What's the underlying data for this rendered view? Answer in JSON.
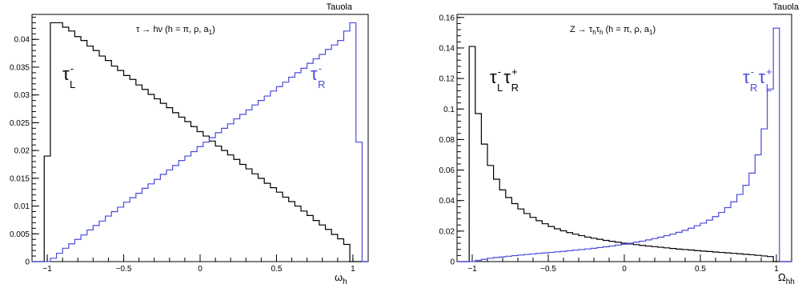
{
  "chart_data": [
    {
      "type": "histogram",
      "corner_label": "Tauola",
      "title_parts": {
        "main": "τ → hν (h = π, ρ, a",
        "sub": "1",
        "close": ")"
      },
      "xlabel": {
        "main": "ω",
        "sub": "h"
      },
      "ylabel": "",
      "xlim": [
        -1.1,
        1.1
      ],
      "ylim": [
        0,
        0.0445
      ],
      "grid": false,
      "xticks": [
        -1,
        -0.5,
        0,
        0.5,
        1
      ],
      "xtick_labels": [
        "−1",
        "−0.5",
        "0",
        "0.5",
        "1"
      ],
      "yticks": [
        0,
        0.005,
        0.01,
        0.015,
        0.02,
        0.025,
        0.03,
        0.035,
        0.04
      ],
      "ytick_labels": [
        "0",
        "0.005",
        "0.01",
        "0.015",
        "0.02",
        "0.025",
        "0.03",
        "0.035",
        "0.04"
      ],
      "bins": {
        "start": -1.1,
        "width": 0.04,
        "count": 55
      },
      "series": [
        {
          "name": "τL−",
          "label_parts": {
            "main": "τ",
            "sup": "-",
            "sub": "L"
          },
          "color": "#000000",
          "values": [
            0,
            0,
            0.019,
            0.043,
            0.043,
            0.0422,
            0.0415,
            0.0405,
            0.0398,
            0.0388,
            0.038,
            0.037,
            0.0362,
            0.0352,
            0.0344,
            0.0335,
            0.0328,
            0.0318,
            0.031,
            0.0301,
            0.0293,
            0.0285,
            0.0277,
            0.0268,
            0.026,
            0.0252,
            0.0243,
            0.0234,
            0.0226,
            0.0217,
            0.0208,
            0.02,
            0.0192,
            0.0184,
            0.0175,
            0.0167,
            0.0158,
            0.015,
            0.0141,
            0.0133,
            0.0125,
            0.0116,
            0.0108,
            0.01,
            0.0091,
            0.0083,
            0.0074,
            0.0066,
            0.0058,
            0.0049,
            0.0041,
            0.0031,
            0,
            0,
            0
          ]
        },
        {
          "name": "τR−",
          "label_parts": {
            "main": "τ",
            "sup": "-",
            "sub": "R"
          },
          "color": "#4a4add",
          "values": [
            0,
            0,
            0,
            0.0006,
            0.0015,
            0.0024,
            0.0032,
            0.004,
            0.0048,
            0.0057,
            0.0065,
            0.0073,
            0.0082,
            0.009,
            0.0098,
            0.0107,
            0.0115,
            0.0123,
            0.0132,
            0.014,
            0.0148,
            0.0157,
            0.0165,
            0.0173,
            0.0182,
            0.019,
            0.0198,
            0.0207,
            0.0215,
            0.0223,
            0.0232,
            0.024,
            0.0248,
            0.0257,
            0.0265,
            0.0273,
            0.0282,
            0.029,
            0.0298,
            0.0307,
            0.0315,
            0.0323,
            0.0332,
            0.034,
            0.0348,
            0.0357,
            0.0365,
            0.0373,
            0.0382,
            0.039,
            0.0398,
            0.0415,
            0.043,
            0.0215,
            0
          ]
        }
      ]
    },
    {
      "type": "histogram",
      "corner_label": "Tauola",
      "title_parts": {
        "main1": "Z → τ",
        "sub1": "h",
        "main2": "τ",
        "sub2": "h",
        "main3": " (h = π, ρ, a",
        "sub3": "1",
        "close": ")"
      },
      "xlabel": {
        "main": "Ω",
        "sub": "hh"
      },
      "ylabel": "",
      "xlim": [
        -1.1,
        1.1
      ],
      "ylim": [
        0,
        0.162
      ],
      "grid": false,
      "xticks": [
        -1,
        -0.5,
        0,
        0.5,
        1
      ],
      "xtick_labels": [
        "−1",
        "−0.5",
        "0",
        "0.5",
        "1"
      ],
      "yticks": [
        0,
        0.02,
        0.04,
        0.06,
        0.08,
        0.1,
        0.12,
        0.14,
        0.16
      ],
      "ytick_labels": [
        "0",
        "0.02",
        "0.04",
        "0.06",
        "0.08",
        "0.1",
        "0.12",
        "0.14",
        "0.16"
      ],
      "bins": {
        "start": -1.1,
        "width": 0.04,
        "count": 55
      },
      "series": [
        {
          "name": "τL−τR+",
          "label_parts": {
            "main1": "τ",
            "sup1": "-",
            "sub1": "L",
            "main2": "τ",
            "sup2": "+",
            "sub2": "R"
          },
          "color": "#000000",
          "values": [
            0,
            0,
            0.141,
            0.097,
            0.077,
            0.063,
            0.054,
            0.047,
            0.042,
            0.038,
            0.0345,
            0.0315,
            0.029,
            0.0268,
            0.0248,
            0.023,
            0.0215,
            0.0202,
            0.019,
            0.018,
            0.017,
            0.0161,
            0.0153,
            0.0146,
            0.0139,
            0.0133,
            0.0127,
            0.0121,
            0.0116,
            0.0111,
            0.0106,
            0.0102,
            0.0098,
            0.0094,
            0.009,
            0.0086,
            0.0082,
            0.0079,
            0.0076,
            0.0072,
            0.0069,
            0.0066,
            0.0063,
            0.006,
            0.0057,
            0.0054,
            0.0051,
            0.0048,
            0.0045,
            0.0041,
            0.0037,
            0.0033,
            0,
            0,
            0
          ]
        },
        {
          "name": "τR−τL+",
          "label_parts": {
            "main1": "τ",
            "sup1": "-",
            "sub1": "R",
            "main2": "τ",
            "sup2": "+",
            "sub2": "L"
          },
          "color": "#4a4add",
          "values": [
            0,
            0,
            0,
            0.0008,
            0.0015,
            0.0022,
            0.0027,
            0.0031,
            0.0035,
            0.0039,
            0.0043,
            0.0047,
            0.005,
            0.0054,
            0.0057,
            0.006,
            0.0064,
            0.0067,
            0.0071,
            0.0075,
            0.0079,
            0.0083,
            0.0087,
            0.0092,
            0.0097,
            0.0102,
            0.0108,
            0.0114,
            0.012,
            0.0127,
            0.0134,
            0.0142,
            0.0151,
            0.016,
            0.017,
            0.018,
            0.0192,
            0.0205,
            0.0219,
            0.0235,
            0.0252,
            0.0272,
            0.0295,
            0.0322,
            0.0354,
            0.0392,
            0.044,
            0.05,
            0.058,
            0.07,
            0.087,
            0.113,
            0.153,
            0,
            0
          ]
        }
      ]
    }
  ]
}
